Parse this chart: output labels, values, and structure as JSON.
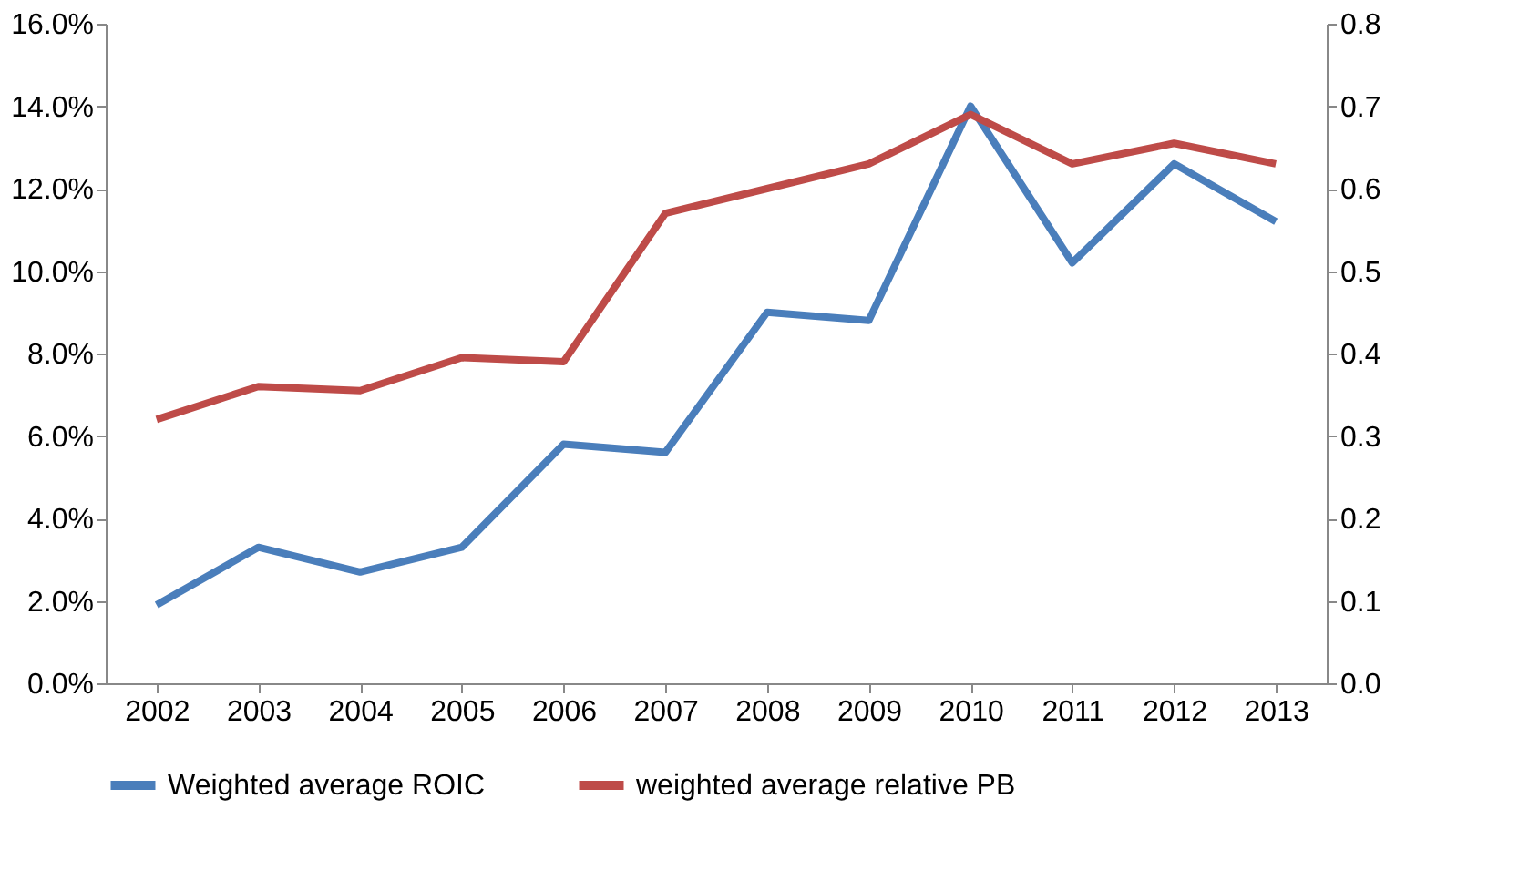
{
  "chart_data": {
    "type": "line",
    "categories": [
      "2002",
      "2003",
      "2004",
      "2005",
      "2006",
      "2007",
      "2008",
      "2009",
      "2010",
      "2011",
      "2012",
      "2013"
    ],
    "series": [
      {
        "name": "Weighted average ROIC",
        "color": "#4a7ebb",
        "values": [
          1.9,
          3.3,
          2.7,
          3.3,
          5.8,
          5.6,
          9.0,
          8.8,
          14.0,
          10.2,
          12.6,
          11.2
        ]
      },
      {
        "name": "weighted average relative PB",
        "color": "#be4b48",
        "axis": "y2",
        "values": [
          0.32,
          0.36,
          0.355,
          0.395,
          0.39,
          0.57,
          0.6,
          0.63,
          0.69,
          0.63,
          0.655,
          0.63
        ]
      }
    ],
    "ylim": [
      0,
      16
    ],
    "yticks": [
      {
        "value": 0,
        "label": "0.0%"
      },
      {
        "value": 2,
        "label": "2.0%"
      },
      {
        "value": 4,
        "label": "4.0%"
      },
      {
        "value": 6,
        "label": "6.0%"
      },
      {
        "value": 8,
        "label": "8.0%"
      },
      {
        "value": 10,
        "label": "10.0%"
      },
      {
        "value": 12,
        "label": "12.0%"
      },
      {
        "value": 14,
        "label": "14.0%"
      },
      {
        "value": 16,
        "label": "16.0%"
      }
    ],
    "y2lim": [
      0,
      0.8
    ],
    "y2ticks": [
      {
        "value": 0,
        "label": "0.0"
      },
      {
        "value": 0.1,
        "label": "0.1"
      },
      {
        "value": 0.2,
        "label": "0.2"
      },
      {
        "value": 0.3,
        "label": "0.3"
      },
      {
        "value": 0.4,
        "label": "0.4"
      },
      {
        "value": 0.5,
        "label": "0.5"
      },
      {
        "value": 0.6,
        "label": "0.6"
      },
      {
        "value": 0.7,
        "label": "0.7"
      },
      {
        "value": 0.8,
        "label": "0.8"
      }
    ],
    "grid": false,
    "legend": "bottom",
    "marker": "none",
    "line_style": "solid"
  }
}
